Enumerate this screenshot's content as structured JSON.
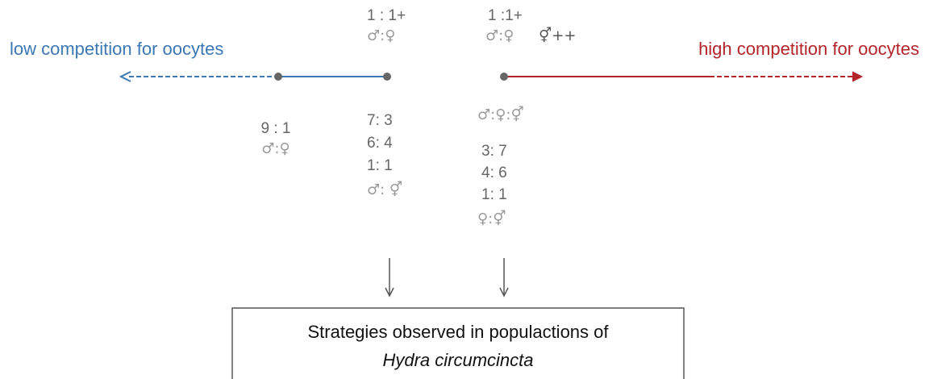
{
  "labels": {
    "left": "low competition for oocytes",
    "right": "high competition for oocytes"
  },
  "points": [
    {
      "below": [
        "9 : 1",
        "♂:♀"
      ]
    },
    {
      "above": [
        "1 : 1+",
        "♂:♀"
      ],
      "below": [
        "7: 3",
        "6: 4",
        "1: 1",
        "♂: ⚥"
      ]
    },
    {
      "above": [
        "1 :1+",
        "♂:♀"
      ],
      "extra": "⚥++",
      "below": [
        "♂:♀:⚥",
        "3: 7",
        "4: 6",
        "1: 1",
        "♀:⚥"
      ]
    }
  ],
  "box": {
    "line1": "Strategies observed in populactions of",
    "line2": "Hydra circumcincta"
  }
}
